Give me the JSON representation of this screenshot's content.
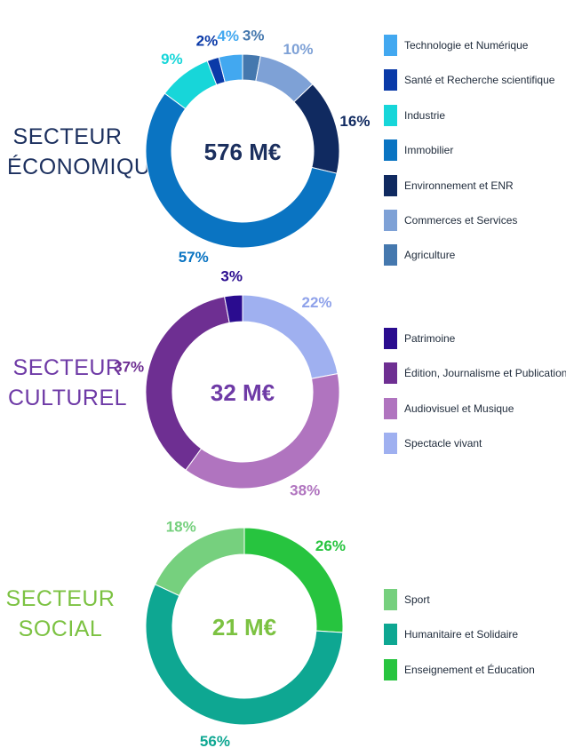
{
  "chart_data": [
    {
      "type": "donut",
      "title_lines": [
        "SECTEUR",
        "ÉCONOMIQUE"
      ],
      "center_label": "576 M€",
      "title_color": "#1b2f5e",
      "center_color": "#1b2f5e",
      "series": [
        {
          "name": "Technologie et Numérique",
          "value": 4,
          "label": "4%",
          "color": "#42a8f0"
        },
        {
          "name": "Santé et Recherche scientifique",
          "value": 2,
          "label": "2%",
          "color": "#0a3aa8"
        },
        {
          "name": "Industrie",
          "value": 9,
          "label": "9%",
          "color": "#17d6d9"
        },
        {
          "name": "Immobilier",
          "value": 57,
          "label": "57%",
          "color": "#0a74c2"
        },
        {
          "name": "Environnement et ENR",
          "value": 16,
          "label": "16%",
          "color": "#102a60"
        },
        {
          "name": "Commerces et Services",
          "value": 10,
          "label": "10%",
          "color": "#7ea1d6"
        },
        {
          "name": "Agriculture",
          "value": 3,
          "label": "3%",
          "color": "#4578ae"
        }
      ],
      "slice_order_clockwise_from_top": [
        "Agriculture",
        "Commerces et Services",
        "Environnement et ENR",
        "Immobilier",
        "Industrie",
        "Santé et Recherche scientifique",
        "Technologie et Numérique"
      ],
      "label_colors": {
        "Technologie et Numérique": "#42a8f0",
        "Santé et Recherche scientifique": "#0a3aa8",
        "Industrie": "#17d6d9",
        "Immobilier": "#0a74c2",
        "Environnement et ENR": "#102a60",
        "Commerces et Services": "#7ea1d6",
        "Agriculture": "#4578ae"
      }
    },
    {
      "type": "donut",
      "title_lines": [
        "SECTEUR",
        "CULTUREL"
      ],
      "center_label": "32 M€",
      "title_color": "#6e3aa6",
      "center_color": "#6e3aa6",
      "series": [
        {
          "name": "Patrimoine",
          "value": 3,
          "label": "3%",
          "color": "#2a0c8f"
        },
        {
          "name": "Édition, Journalisme et Publications",
          "value": 37,
          "label": "37%",
          "color": "#6e2f92"
        },
        {
          "name": "Audiovisuel et Musique",
          "value": 38,
          "label": "38%",
          "color": "#b074bf"
        },
        {
          "name": "Spectacle vivant",
          "value": 22,
          "label": "22%",
          "color": "#9fb0f0"
        }
      ],
      "slice_order_clockwise_from_top": [
        "Spectacle vivant",
        "Audiovisuel et Musique",
        "Édition, Journalisme et Publications",
        "Patrimoine"
      ],
      "label_colors": {
        "Patrimoine": "#2a0c8f",
        "Édition, Journalisme et Publications": "#6e2f92",
        "Audiovisuel et Musique": "#b074bf",
        "Spectacle vivant": "#8fa2ea"
      }
    },
    {
      "type": "donut",
      "title_lines": [
        "SECTEUR",
        "SOCIAL"
      ],
      "center_label": "21 M€",
      "title_color": "#7cc242",
      "center_color": "#7cc242",
      "series": [
        {
          "name": "Sport",
          "value": 18,
          "label": "18%",
          "color": "#76d07e"
        },
        {
          "name": "Humanitaire et Solidaire",
          "value": 56,
          "label": "56%",
          "color": "#0ea792"
        },
        {
          "name": "Enseignement et Éducation",
          "value": 26,
          "label": "26%",
          "color": "#27c43f"
        }
      ],
      "slice_order_clockwise_from_top": [
        "Enseignement et Éducation",
        "Humanitaire et Solidaire",
        "Sport"
      ],
      "label_colors": {
        "Sport": "#76d07e",
        "Humanitaire et Solidaire": "#0ea792",
        "Enseignement et Éducation": "#27c43f"
      }
    }
  ]
}
